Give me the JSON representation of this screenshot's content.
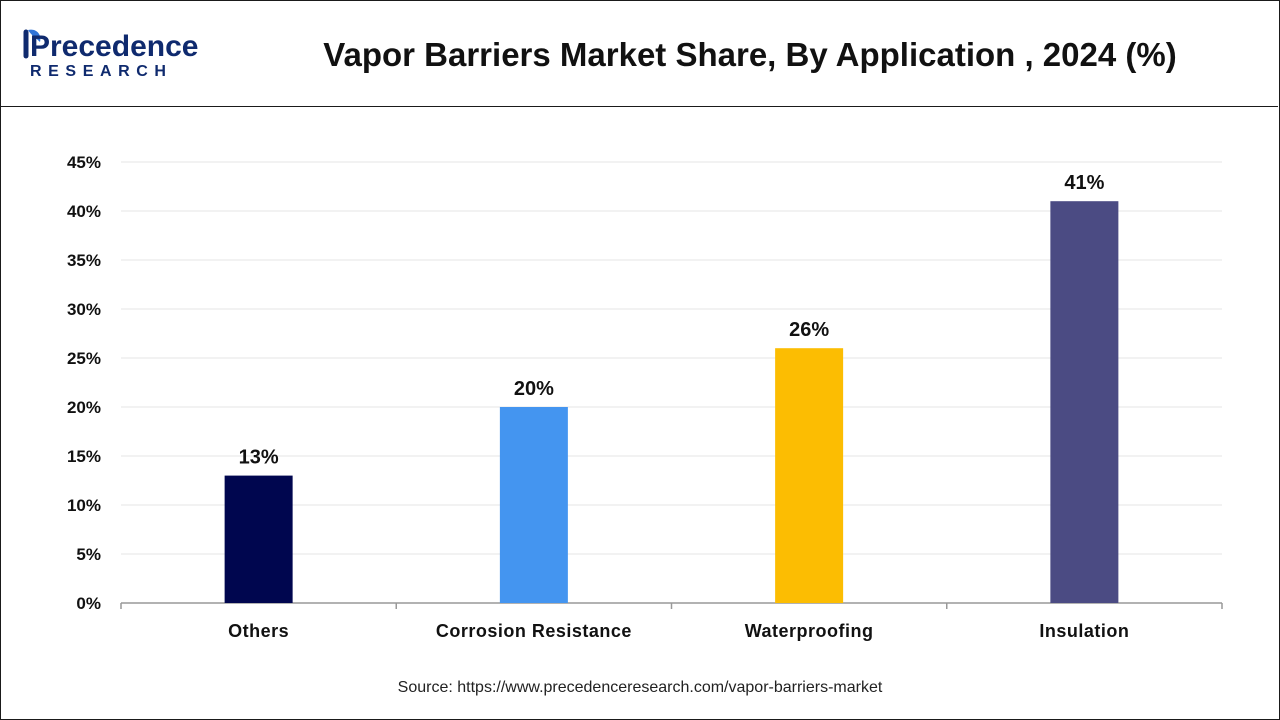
{
  "brand": {
    "name_top": "Precedence",
    "name_bottom": "RESEARCH",
    "primary_color": "#0f2a6e",
    "accent_color": "#2f74d9"
  },
  "header": {
    "title": "Vapor Barriers Market Share, By Application , 2024 (%)"
  },
  "footer": {
    "source": "Source: https://www.precedenceresearch.com/vapor-barriers-market"
  },
  "chart_data": {
    "type": "bar",
    "title": "Vapor Barriers Market Share, By Application , 2024 (%)",
    "xlabel": "",
    "ylabel": "",
    "categories": [
      "Others",
      "Corrosion Resistance",
      "Waterproofing",
      "Insulation"
    ],
    "values": [
      13,
      20,
      26,
      41
    ],
    "value_labels": [
      "13%",
      "20%",
      "26%",
      "41%"
    ],
    "colors": [
      "#00064f",
      "#4495f0",
      "#fcbd02",
      "#4b4b83"
    ],
    "ylim": [
      0,
      45
    ],
    "yticks": [
      0,
      5,
      10,
      15,
      20,
      25,
      30,
      35,
      40,
      45
    ],
    "ytick_labels": [
      "0%",
      "5%",
      "10%",
      "15%",
      "20%",
      "25%",
      "30%",
      "35%",
      "40%",
      "45%"
    ],
    "grid": true,
    "legend": "none"
  }
}
